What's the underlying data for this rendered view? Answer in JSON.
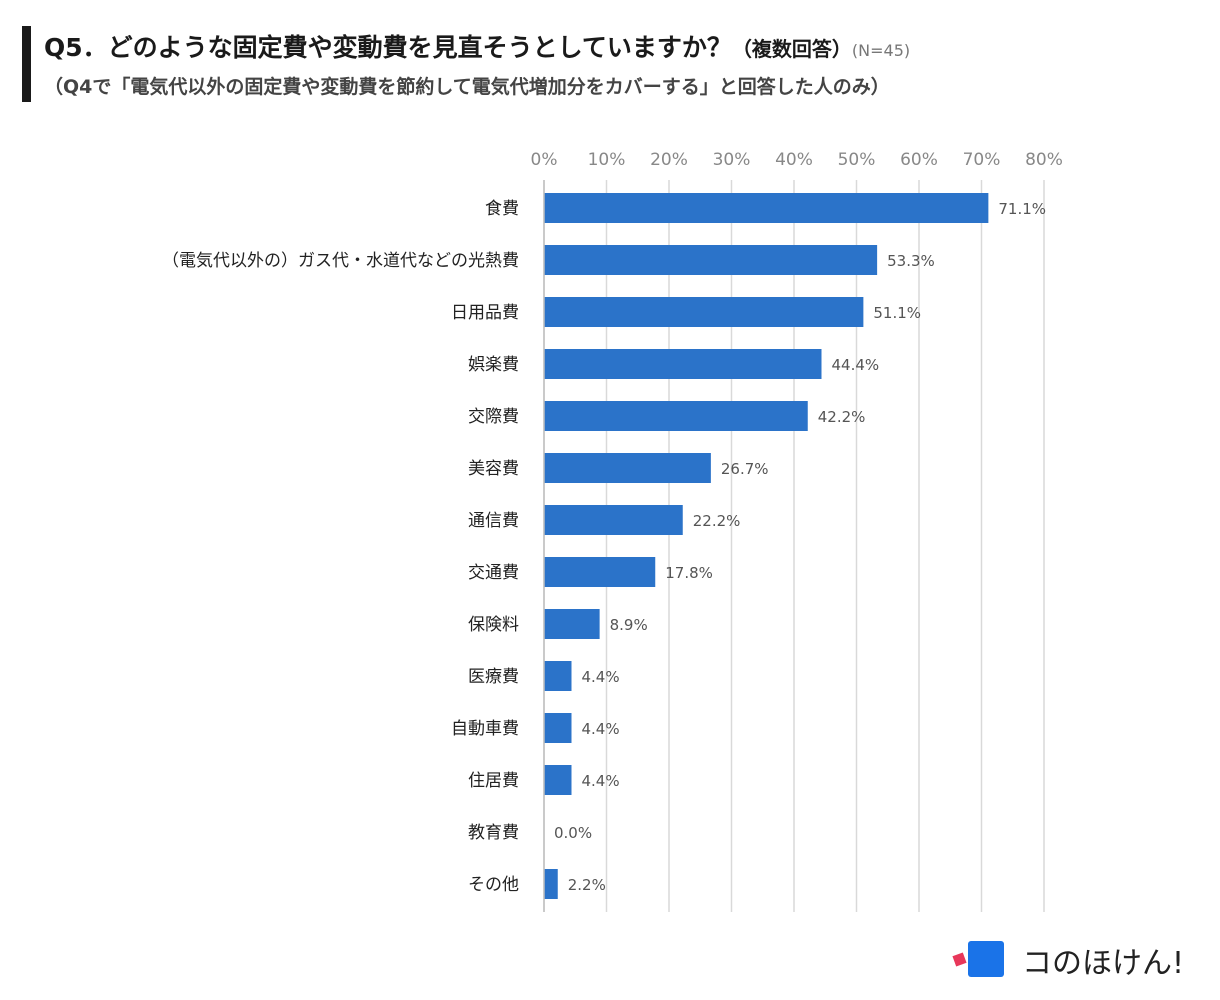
{
  "header": {
    "title": "Q5．どのような固定費や変動費を見直そうとしていますか？",
    "title_suffix": "（複数回答）",
    "sample_size": "(N=45)",
    "subtitle": "（Q4で「電気代以外の固定費や変動費を節約して電気代増加分をカバーする」と回答した人のみ）"
  },
  "brand": {
    "logo_text": "コのほけん!",
    "colors": {
      "mark": "#1a73e8",
      "accent": "#e8375a"
    }
  },
  "chart_data": {
    "type": "bar",
    "orientation": "horizontal",
    "title": "Q5．どのような固定費や変動費を見直そうとしていますか？（複数回答）",
    "categories": [
      "食費",
      "（電気代以外の）ガス代・水道代などの光熱費",
      "日用品費",
      "娯楽費",
      "交際費",
      "美容費",
      "通信費",
      "交通費",
      "保険料",
      "医療費",
      "自動車費",
      "住居費",
      "教育費",
      "その他"
    ],
    "values": [
      71.1,
      53.3,
      51.1,
      44.4,
      42.2,
      26.7,
      22.2,
      17.8,
      8.9,
      4.4,
      4.4,
      4.4,
      0.0,
      2.2
    ],
    "value_labels": [
      "71.1%",
      "53.3%",
      "51.1%",
      "44.4%",
      "42.2%",
      "26.7%",
      "22.2%",
      "17.8%",
      "8.9%",
      "4.4%",
      "4.4%",
      "4.4%",
      "0.0%",
      "2.2%"
    ],
    "xlim": [
      0,
      80
    ],
    "xticks": [
      0,
      10,
      20,
      30,
      40,
      50,
      60,
      70,
      80
    ],
    "xtick_labels": [
      "0%",
      "10%",
      "20%",
      "30%",
      "40%",
      "50%",
      "60%",
      "70%",
      "80%"
    ],
    "axis_position": "top",
    "grid": true,
    "bar_color": "#2b73c9",
    "grid_color": "#d9d9d9"
  }
}
